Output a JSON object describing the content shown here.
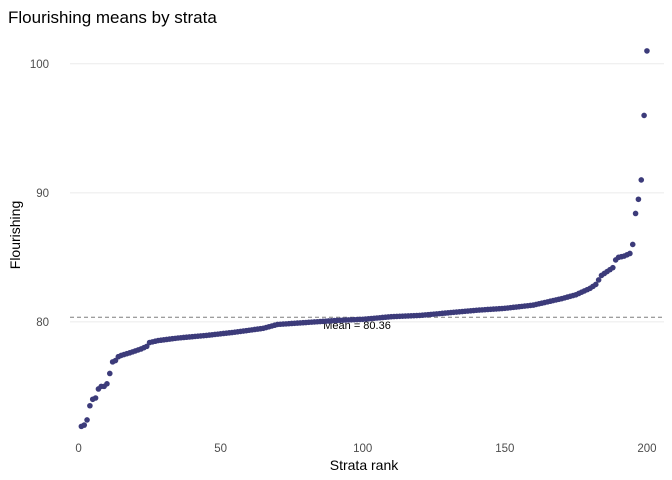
{
  "chart_data": {
    "type": "scatter",
    "title": "Flourishing means by strata",
    "xlabel": "Strata rank",
    "ylabel": "Flourishing",
    "xlim": [
      -3,
      206
    ],
    "ylim": [
      71.0,
      102.0
    ],
    "x_ticks": [
      0,
      50,
      100,
      150,
      200
    ],
    "y_ticks": [
      80,
      90,
      100
    ],
    "grid": "horizontal",
    "legend": "none",
    "point_color": "#3c3b7a",
    "mean_line": {
      "value": 80.36,
      "label": "Mean = 80.36"
    },
    "curve_knots": [
      [
        1,
        71.9
      ],
      [
        2,
        72.0
      ],
      [
        3,
        72.4
      ],
      [
        4,
        73.5
      ],
      [
        5,
        74.0
      ],
      [
        6,
        74.1
      ],
      [
        7,
        74.8
      ],
      [
        8,
        75.0
      ],
      [
        9,
        75.0
      ],
      [
        10,
        75.2
      ],
      [
        11,
        76.0
      ],
      [
        12,
        76.9
      ],
      [
        13,
        77.0
      ],
      [
        14,
        77.3
      ],
      [
        15,
        77.4
      ],
      [
        18,
        77.6
      ],
      [
        22,
        77.9
      ],
      [
        24,
        78.1
      ],
      [
        25,
        78.4
      ],
      [
        28,
        78.55
      ],
      [
        35,
        78.75
      ],
      [
        45,
        78.95
      ],
      [
        55,
        79.2
      ],
      [
        60,
        79.35
      ],
      [
        65,
        79.5
      ],
      [
        70,
        79.8
      ],
      [
        80,
        79.95
      ],
      [
        90,
        80.1
      ],
      [
        100,
        80.2
      ],
      [
        110,
        80.4
      ],
      [
        120,
        80.5
      ],
      [
        130,
        80.7
      ],
      [
        140,
        80.9
      ],
      [
        150,
        81.05
      ],
      [
        160,
        81.3
      ],
      [
        165,
        81.55
      ],
      [
        170,
        81.8
      ],
      [
        175,
        82.1
      ],
      [
        178,
        82.4
      ],
      [
        180,
        82.6
      ],
      [
        182,
        82.9
      ],
      [
        184,
        83.6
      ],
      [
        186,
        83.9
      ],
      [
        188,
        84.2
      ],
      [
        189,
        84.8
      ],
      [
        190,
        85.0
      ],
      [
        192,
        85.1
      ],
      [
        194,
        85.3
      ],
      [
        195,
        86.0
      ],
      [
        196,
        88.4
      ],
      [
        197,
        89.5
      ],
      [
        198,
        91.0
      ],
      [
        199,
        96.0
      ],
      [
        200,
        101.0
      ]
    ]
  }
}
